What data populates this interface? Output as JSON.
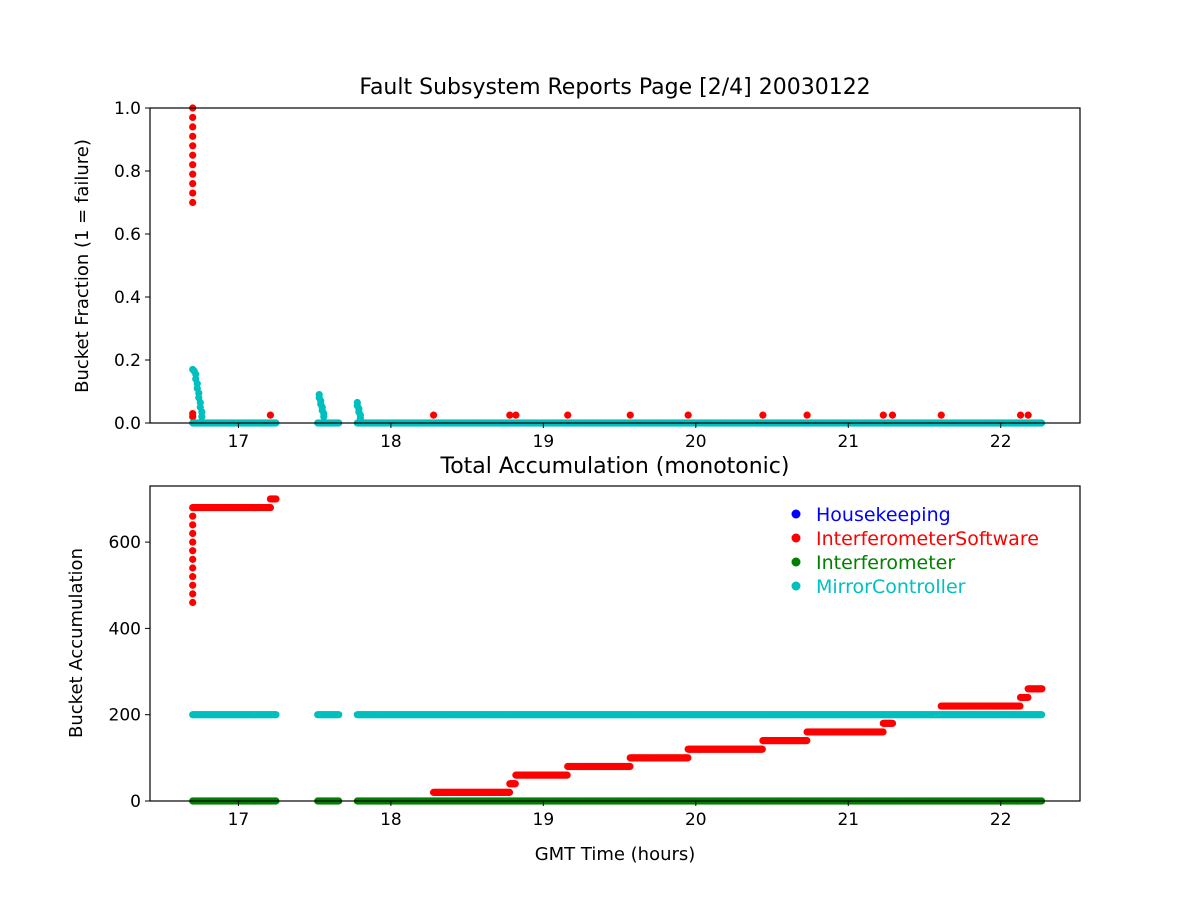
{
  "chart_data": [
    {
      "type": "scatter",
      "title": "Fault Subsystem Reports Page [2/4] 20030122",
      "xlabel": "",
      "ylabel": "Bucket Fraction (1 = failure)",
      "xlim": [
        16.42,
        22.52
      ],
      "ylim": [
        0.0,
        1.0
      ],
      "xticks": [
        17,
        18,
        19,
        20,
        21,
        22
      ],
      "yticks": [
        0.0,
        0.2,
        0.4,
        0.6,
        0.8,
        1.0
      ],
      "ytick_labels": [
        "0.0",
        "0.2",
        "0.4",
        "0.6",
        "0.8",
        "1.0"
      ],
      "series": [
        {
          "key": "InterferometerSoftware",
          "color": "#ff0000",
          "continuous": [],
          "points": [
            [
              16.7,
              0.7
            ],
            [
              16.7,
              0.73
            ],
            [
              16.7,
              0.76
            ],
            [
              16.7,
              0.79
            ],
            [
              16.7,
              0.82
            ],
            [
              16.7,
              0.85
            ],
            [
              16.7,
              0.88
            ],
            [
              16.7,
              0.91
            ],
            [
              16.7,
              0.94
            ],
            [
              16.7,
              0.97
            ],
            [
              16.7,
              1.0
            ],
            [
              16.7,
              0.03
            ],
            [
              16.7,
              0.02
            ],
            [
              17.21,
              0.025
            ],
            [
              18.28,
              0.025
            ],
            [
              18.78,
              0.025
            ],
            [
              18.82,
              0.025
            ],
            [
              19.16,
              0.025
            ],
            [
              19.57,
              0.025
            ],
            [
              19.95,
              0.025
            ],
            [
              20.44,
              0.025
            ],
            [
              20.73,
              0.025
            ],
            [
              21.23,
              0.025
            ],
            [
              21.29,
              0.025
            ],
            [
              21.61,
              0.025
            ],
            [
              22.13,
              0.025
            ],
            [
              22.18,
              0.025
            ]
          ]
        },
        {
          "key": "MirrorController",
          "color": "#00bfbf",
          "continuous": [
            [
              16.7,
              17.25,
              0.0
            ],
            [
              17.52,
              17.66,
              0.0
            ],
            [
              17.78,
              22.27,
              0.0
            ]
          ],
          "points": [
            [
              16.7,
              0.17
            ],
            [
              16.71,
              0.165
            ],
            [
              16.72,
              0.155
            ],
            [
              16.72,
              0.14
            ],
            [
              16.73,
              0.125
            ],
            [
              16.73,
              0.11
            ],
            [
              16.74,
              0.095
            ],
            [
              16.74,
              0.08
            ],
            [
              16.75,
              0.065
            ],
            [
              16.75,
              0.05
            ],
            [
              16.76,
              0.035
            ],
            [
              16.76,
              0.02
            ],
            [
              17.53,
              0.09
            ],
            [
              17.53,
              0.08
            ],
            [
              17.54,
              0.07
            ],
            [
              17.54,
              0.06
            ],
            [
              17.55,
              0.05
            ],
            [
              17.55,
              0.04
            ],
            [
              17.56,
              0.03
            ],
            [
              17.56,
              0.02
            ],
            [
              17.78,
              0.065
            ],
            [
              17.78,
              0.055
            ],
            [
              17.79,
              0.045
            ],
            [
              17.79,
              0.035
            ],
            [
              17.8,
              0.025
            ],
            [
              17.8,
              0.015
            ]
          ]
        }
      ]
    },
    {
      "type": "scatter",
      "title": "Total Accumulation (monotonic)",
      "xlabel": "GMT Time (hours)",
      "ylabel": "Bucket Accumulation",
      "xlim": [
        16.42,
        22.52
      ],
      "ylim": [
        0,
        730
      ],
      "xticks": [
        17,
        18,
        19,
        20,
        21,
        22
      ],
      "yticks": [
        0,
        200,
        400,
        600
      ],
      "ytick_labels": [
        "0",
        "200",
        "400",
        "600"
      ],
      "legend_position": "top-right",
      "series": [
        {
          "key": "Interferometer",
          "color": "#008000",
          "continuous": [
            [
              16.7,
              17.25,
              0
            ],
            [
              17.52,
              17.66,
              0
            ],
            [
              17.78,
              22.27,
              0
            ]
          ],
          "points": []
        },
        {
          "key": "MirrorController",
          "color": "#00bfbf",
          "continuous": [
            [
              16.7,
              17.25,
              200
            ],
            [
              17.52,
              17.66,
              200
            ],
            [
              17.78,
              22.27,
              200
            ]
          ],
          "points": []
        },
        {
          "key": "InterferometerSoftware",
          "color": "#ff0000",
          "continuous": [
            [
              16.7,
              17.21,
              680
            ],
            [
              17.21,
              17.25,
              700
            ],
            [
              18.28,
              18.78,
              20
            ],
            [
              18.78,
              18.82,
              40
            ],
            [
              18.82,
              19.16,
              60
            ],
            [
              19.16,
              19.57,
              80
            ],
            [
              19.57,
              19.95,
              100
            ],
            [
              19.95,
              20.44,
              120
            ],
            [
              20.44,
              20.73,
              140
            ],
            [
              20.73,
              21.23,
              160
            ],
            [
              21.23,
              21.29,
              180
            ],
            [
              21.61,
              22.13,
              220
            ],
            [
              22.13,
              22.18,
              240
            ],
            [
              22.18,
              22.27,
              260
            ]
          ],
          "points": [
            [
              16.7,
              460
            ],
            [
              16.7,
              480
            ],
            [
              16.7,
              500
            ],
            [
              16.7,
              520
            ],
            [
              16.7,
              540
            ],
            [
              16.7,
              560
            ],
            [
              16.7,
              580
            ],
            [
              16.7,
              600
            ],
            [
              16.7,
              620
            ],
            [
              16.7,
              640
            ],
            [
              16.7,
              660
            ]
          ]
        }
      ]
    }
  ],
  "legend": {
    "items": [
      {
        "label": "Housekeeping",
        "color": "#0000ff"
      },
      {
        "label": "InterferometerSoftware",
        "color": "#ff0000"
      },
      {
        "label": "Interferometer",
        "color": "#008000"
      },
      {
        "label": "MirrorController",
        "color": "#00bfbf"
      }
    ]
  }
}
